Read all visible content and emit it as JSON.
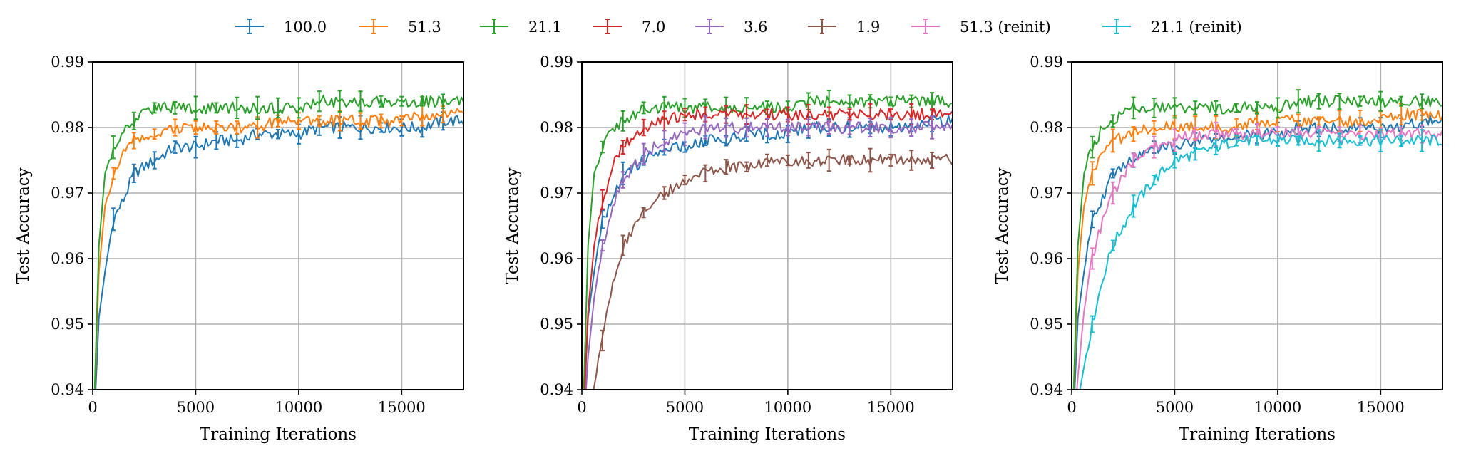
{
  "legend": {
    "placement": "top-center",
    "entries": [
      {
        "label": "100.0",
        "color": "#1f77b4"
      },
      {
        "label": "51.3",
        "color": "#ff7f0e"
      },
      {
        "label": "21.1",
        "color": "#2ca02c"
      },
      {
        "label": "7.0",
        "color": "#d62728"
      },
      {
        "label": "3.6",
        "color": "#9467bd"
      },
      {
        "label": "1.9",
        "color": "#8c564b"
      },
      {
        "label": "51.3 (reinit)",
        "color": "#e377c2"
      },
      {
        "label": "21.1 (reinit)",
        "color": "#17becf"
      }
    ]
  },
  "chart_data": [
    {
      "type": "line",
      "xlabel": "Training Iterations",
      "ylabel": "Test Accuracy",
      "xlim": [
        0,
        18000
      ],
      "ylim": [
        0.94,
        0.99
      ],
      "xticks": [
        "0",
        "5000",
        "10000",
        "15000"
      ],
      "yticks": [
        "0.94",
        "0.95",
        "0.96",
        "0.97",
        "0.98",
        "0.99"
      ],
      "grid": true,
      "series": [
        {
          "name": "100.0",
          "color": "#1f77b4",
          "x": [
            0,
            300,
            600,
            1000,
            1500,
            2000,
            3000,
            4000,
            5000,
            6000,
            7000,
            8000,
            9000,
            10000,
            11000,
            12000,
            13000,
            14000,
            15000,
            16000,
            17000,
            18000
          ],
          "y": [
            0.93,
            0.951,
            0.958,
            0.966,
            0.969,
            0.973,
            0.975,
            0.977,
            0.977,
            0.978,
            0.978,
            0.979,
            0.979,
            0.979,
            0.98,
            0.98,
            0.98,
            0.98,
            0.98,
            0.98,
            0.981,
            0.981
          ]
        },
        {
          "name": "51.3",
          "color": "#ff7f0e",
          "x": [
            0,
            300,
            600,
            1000,
            1500,
            2000,
            3000,
            4000,
            5000,
            6000,
            7000,
            8000,
            9000,
            10000,
            11000,
            12000,
            13000,
            14000,
            15000,
            16000,
            17000,
            18000
          ],
          "y": [
            0.93,
            0.958,
            0.968,
            0.973,
            0.976,
            0.978,
            0.979,
            0.98,
            0.98,
            0.98,
            0.98,
            0.98,
            0.981,
            0.981,
            0.981,
            0.981,
            0.981,
            0.981,
            0.981,
            0.982,
            0.982,
            0.982
          ]
        },
        {
          "name": "21.1",
          "color": "#2ca02c",
          "x": [
            0,
            300,
            600,
            1000,
            1500,
            2000,
            3000,
            4000,
            5000,
            6000,
            7000,
            8000,
            9000,
            10000,
            11000,
            12000,
            13000,
            14000,
            15000,
            16000,
            17000,
            18000
          ],
          "y": [
            0.93,
            0.962,
            0.973,
            0.977,
            0.98,
            0.981,
            0.983,
            0.983,
            0.983,
            0.983,
            0.983,
            0.983,
            0.983,
            0.983,
            0.984,
            0.984,
            0.984,
            0.984,
            0.984,
            0.984,
            0.984,
            0.984
          ]
        }
      ]
    },
    {
      "type": "line",
      "xlabel": "Training Iterations",
      "ylabel": "Test Accuracy",
      "xlim": [
        0,
        18000
      ],
      "ylim": [
        0.94,
        0.99
      ],
      "xticks": [
        "0",
        "5000",
        "10000",
        "15000"
      ],
      "yticks": [
        "0.94",
        "0.95",
        "0.96",
        "0.97",
        "0.98",
        "0.99"
      ],
      "grid": true,
      "series": [
        {
          "name": "100.0",
          "color": "#1f77b4",
          "x": [
            0,
            300,
            600,
            1000,
            1500,
            2000,
            3000,
            4000,
            5000,
            6000,
            7000,
            8000,
            9000,
            10000,
            11000,
            12000,
            13000,
            14000,
            15000,
            16000,
            17000,
            18000
          ],
          "y": [
            0.93,
            0.951,
            0.958,
            0.966,
            0.969,
            0.973,
            0.975,
            0.977,
            0.977,
            0.978,
            0.978,
            0.979,
            0.979,
            0.979,
            0.98,
            0.98,
            0.98,
            0.98,
            0.98,
            0.98,
            0.981,
            0.981
          ]
        },
        {
          "name": "21.1",
          "color": "#2ca02c",
          "x": [
            0,
            300,
            600,
            1000,
            1500,
            2000,
            3000,
            4000,
            5000,
            6000,
            7000,
            8000,
            9000,
            10000,
            11000,
            12000,
            13000,
            14000,
            15000,
            16000,
            17000,
            18000
          ],
          "y": [
            0.93,
            0.962,
            0.973,
            0.977,
            0.98,
            0.981,
            0.983,
            0.983,
            0.983,
            0.983,
            0.983,
            0.983,
            0.983,
            0.983,
            0.984,
            0.984,
            0.984,
            0.984,
            0.984,
            0.984,
            0.984,
            0.984
          ]
        },
        {
          "name": "7.0",
          "color": "#d62728",
          "x": [
            0,
            300,
            600,
            1000,
            1500,
            2000,
            3000,
            4000,
            5000,
            6000,
            7000,
            8000,
            9000,
            10000,
            11000,
            12000,
            13000,
            14000,
            15000,
            16000,
            17000,
            18000
          ],
          "y": [
            0.93,
            0.952,
            0.962,
            0.969,
            0.974,
            0.977,
            0.98,
            0.981,
            0.982,
            0.982,
            0.982,
            0.982,
            0.982,
            0.982,
            0.982,
            0.982,
            0.982,
            0.982,
            0.982,
            0.982,
            0.982,
            0.982
          ]
        },
        {
          "name": "3.6",
          "color": "#9467bd",
          "x": [
            0,
            300,
            600,
            1000,
            1500,
            2000,
            3000,
            4000,
            5000,
            6000,
            7000,
            8000,
            9000,
            10000,
            11000,
            12000,
            13000,
            14000,
            15000,
            16000,
            17000,
            18000
          ],
          "y": [
            0.93,
            0.945,
            0.954,
            0.962,
            0.968,
            0.972,
            0.976,
            0.978,
            0.979,
            0.98,
            0.98,
            0.98,
            0.98,
            0.98,
            0.98,
            0.98,
            0.98,
            0.98,
            0.98,
            0.98,
            0.98,
            0.98
          ]
        },
        {
          "name": "1.9",
          "color": "#8c564b",
          "x": [
            0,
            400,
            800,
            1200,
            1600,
            2000,
            3000,
            4000,
            5000,
            6000,
            7000,
            8000,
            9000,
            10000,
            11000,
            12000,
            13000,
            14000,
            15000,
            16000,
            17000,
            18000
          ],
          "y": [
            0.925,
            0.937,
            0.944,
            0.951,
            0.957,
            0.962,
            0.967,
            0.97,
            0.972,
            0.973,
            0.974,
            0.974,
            0.975,
            0.975,
            0.975,
            0.975,
            0.975,
            0.975,
            0.975,
            0.975,
            0.975,
            0.975
          ]
        }
      ]
    },
    {
      "type": "line",
      "xlabel": "Training Iterations",
      "ylabel": "Test Accuracy",
      "xlim": [
        0,
        18000
      ],
      "ylim": [
        0.94,
        0.99
      ],
      "xticks": [
        "0",
        "5000",
        "10000",
        "15000"
      ],
      "yticks": [
        "0.94",
        "0.95",
        "0.96",
        "0.97",
        "0.98",
        "0.99"
      ],
      "grid": true,
      "series": [
        {
          "name": "100.0",
          "color": "#1f77b4",
          "x": [
            0,
            300,
            600,
            1000,
            1500,
            2000,
            3000,
            4000,
            5000,
            6000,
            7000,
            8000,
            9000,
            10000,
            11000,
            12000,
            13000,
            14000,
            15000,
            16000,
            17000,
            18000
          ],
          "y": [
            0.93,
            0.951,
            0.958,
            0.966,
            0.969,
            0.973,
            0.975,
            0.977,
            0.977,
            0.978,
            0.978,
            0.979,
            0.979,
            0.979,
            0.98,
            0.98,
            0.98,
            0.98,
            0.98,
            0.98,
            0.981,
            0.981
          ]
        },
        {
          "name": "51.3",
          "color": "#ff7f0e",
          "x": [
            0,
            300,
            600,
            1000,
            1500,
            2000,
            3000,
            4000,
            5000,
            6000,
            7000,
            8000,
            9000,
            10000,
            11000,
            12000,
            13000,
            14000,
            15000,
            16000,
            17000,
            18000
          ],
          "y": [
            0.93,
            0.958,
            0.968,
            0.973,
            0.976,
            0.978,
            0.979,
            0.98,
            0.98,
            0.98,
            0.98,
            0.98,
            0.981,
            0.981,
            0.981,
            0.981,
            0.981,
            0.981,
            0.981,
            0.982,
            0.982,
            0.982
          ]
        },
        {
          "name": "21.1",
          "color": "#2ca02c",
          "x": [
            0,
            300,
            600,
            1000,
            1500,
            2000,
            3000,
            4000,
            5000,
            6000,
            7000,
            8000,
            9000,
            10000,
            11000,
            12000,
            13000,
            14000,
            15000,
            16000,
            17000,
            18000
          ],
          "y": [
            0.93,
            0.962,
            0.973,
            0.977,
            0.98,
            0.981,
            0.983,
            0.983,
            0.983,
            0.983,
            0.983,
            0.983,
            0.983,
            0.983,
            0.984,
            0.984,
            0.984,
            0.984,
            0.984,
            0.984,
            0.984,
            0.984
          ]
        },
        {
          "name": "51.3 (reinit)",
          "color": "#e377c2",
          "x": [
            0,
            300,
            600,
            1000,
            1500,
            2000,
            3000,
            4000,
            5000,
            6000,
            7000,
            8000,
            9000,
            10000,
            11000,
            12000,
            13000,
            14000,
            15000,
            16000,
            17000,
            18000
          ],
          "y": [
            0.93,
            0.942,
            0.952,
            0.96,
            0.966,
            0.97,
            0.975,
            0.977,
            0.978,
            0.979,
            0.979,
            0.979,
            0.979,
            0.979,
            0.979,
            0.979,
            0.979,
            0.979,
            0.979,
            0.979,
            0.979,
            0.979
          ]
        },
        {
          "name": "21.1 (reinit)",
          "color": "#17becf",
          "x": [
            0,
            400,
            800,
            1200,
            1600,
            2000,
            3000,
            4000,
            5000,
            6000,
            7000,
            8000,
            9000,
            10000,
            11000,
            12000,
            13000,
            14000,
            15000,
            16000,
            17000,
            18000
          ],
          "y": [
            0.93,
            0.94,
            0.947,
            0.953,
            0.958,
            0.962,
            0.968,
            0.972,
            0.975,
            0.976,
            0.977,
            0.978,
            0.978,
            0.978,
            0.978,
            0.978,
            0.978,
            0.978,
            0.978,
            0.978,
            0.978,
            0.978
          ]
        }
      ]
    }
  ]
}
